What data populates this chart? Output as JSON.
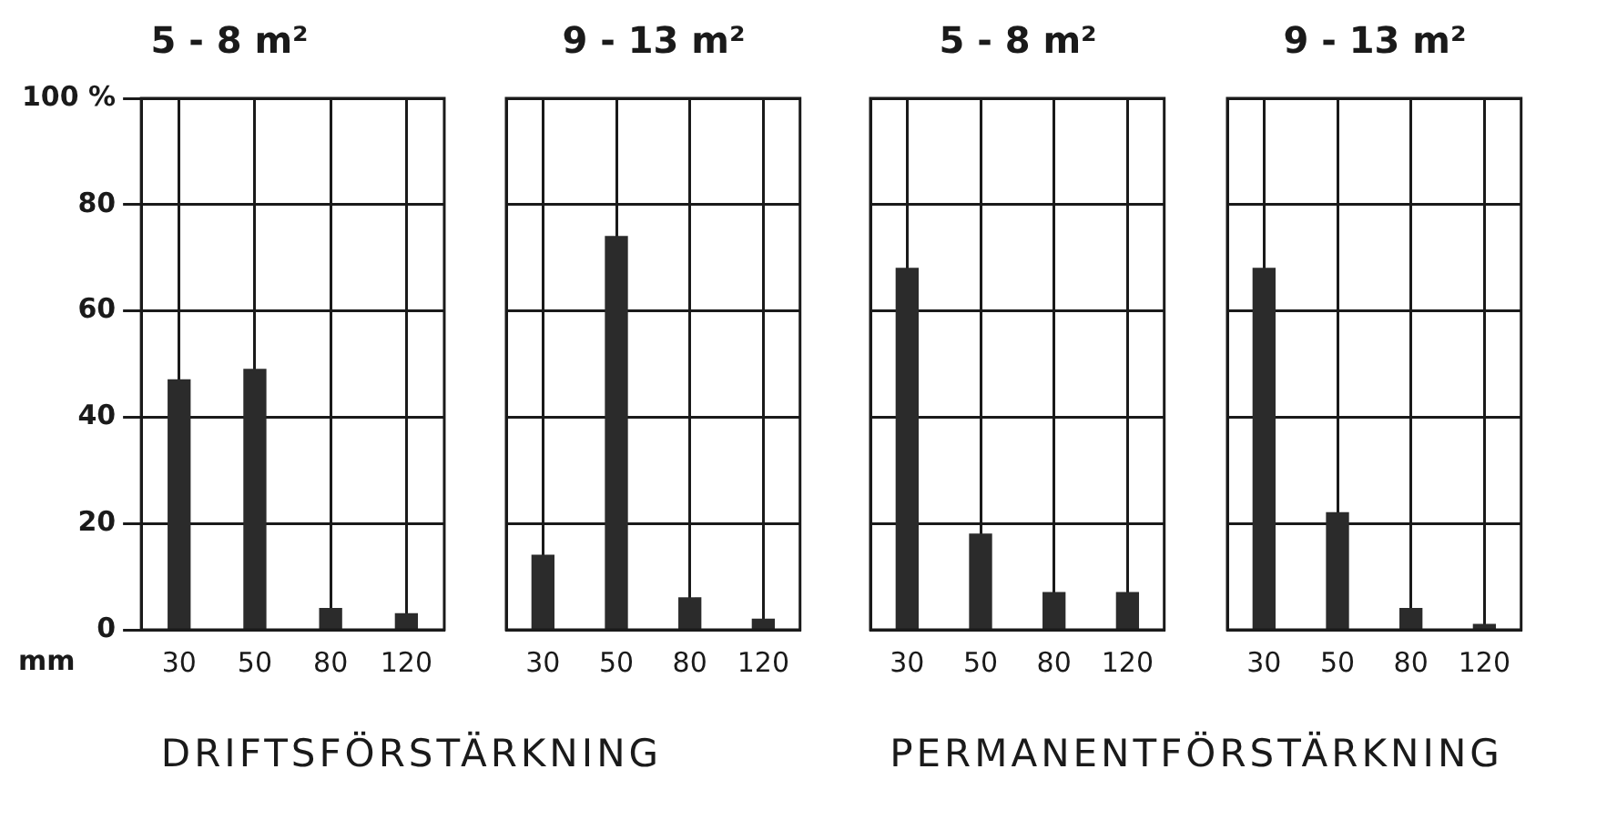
{
  "chart_data": [
    {
      "type": "bar",
      "title": "5 - 8 m²",
      "xlabel": "mm",
      "categories": [
        "30",
        "50",
        "80",
        "120"
      ],
      "values": [
        47,
        49,
        4,
        3
      ],
      "color": "#2b2b2b",
      "ylim": [
        0,
        100
      ],
      "yticks": [
        0,
        20,
        40,
        60,
        80,
        {
          "value": 100,
          "label": "100 %"
        }
      ],
      "grid": true,
      "annotations": [
        "DRIFTSFÖRSTÄRKNING"
      ]
    },
    {
      "type": "bar",
      "title": "9 - 13 m²",
      "categories": [
        "30",
        "50",
        "80",
        "120"
      ],
      "values": [
        14,
        74,
        6,
        2
      ],
      "color": "#2b2b2b",
      "ylim": [
        0,
        100
      ],
      "yticks": [
        0,
        20,
        40,
        60,
        80,
        100
      ],
      "grid": true,
      "tick_labels": "x"
    },
    {
      "type": "bar",
      "title": "5 - 8 m²",
      "categories": [
        "30",
        "50",
        "80",
        "120"
      ],
      "values": [
        68,
        18,
        7,
        7
      ],
      "color": "#2b2b2b",
      "ylim": [
        0,
        100
      ],
      "yticks": [
        0,
        20,
        40,
        60,
        80,
        100
      ],
      "grid": true,
      "tick_labels": "x",
      "annotations": [
        "PERMANENTFÖRSTÄRKNING"
      ]
    },
    {
      "type": "bar",
      "title": "9 - 13 m²",
      "categories": [
        "30",
        "50",
        "80",
        "120"
      ],
      "values": [
        68,
        22,
        4,
        1
      ],
      "color": "#2b2b2b",
      "ylim": [
        0,
        100
      ],
      "yticks": [
        0,
        20,
        40,
        60,
        80,
        100
      ],
      "grid": true,
      "tick_labels": "x"
    }
  ]
}
